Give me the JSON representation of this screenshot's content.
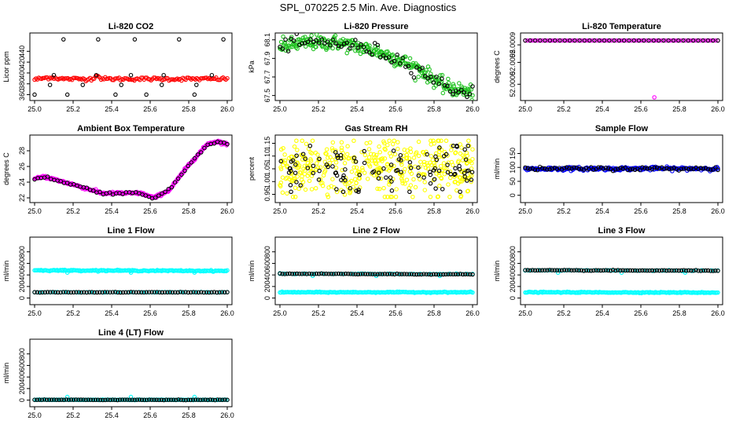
{
  "page": {
    "title": "SPL_070225  2.5 Min. Ave. Diagnostics"
  },
  "colors": {
    "red": "#ff0000",
    "green": "#22c322",
    "magenta": "#ff00ff",
    "yellow": "#ffff00",
    "blue": "#0000ff",
    "cyan": "#00ffff",
    "black": "#000000"
  },
  "chart_data": [
    {
      "id": "co2",
      "type": "scatter",
      "title": "Li-820 CO2",
      "ylabel": "Licor ppm",
      "xlim": [
        25.0,
        26.0
      ],
      "ylim": [
        355,
        468
      ],
      "xticks": [
        "25.0",
        "25.2",
        "25.4",
        "25.6",
        "25.8",
        "26.0"
      ],
      "yticks": [
        360,
        380,
        400,
        420,
        440
      ],
      "series": [
        {
          "name": "co2-main",
          "color": "red",
          "kind": "band",
          "anchors": [
            [
              25.0,
              388
            ],
            [
              25.08,
              392
            ],
            [
              25.15,
              389
            ],
            [
              25.3,
              389
            ],
            [
              25.32,
              396
            ],
            [
              25.35,
              389
            ],
            [
              26.0,
              389
            ]
          ],
          "noise": 1.5,
          "n": 140
        },
        {
          "name": "co2-ref",
          "color": "black",
          "kind": "levels",
          "x": [
            25.0,
            25.08,
            25.1,
            25.15,
            25.17,
            25.25,
            25.32,
            25.33,
            25.42,
            25.45,
            25.5,
            25.52,
            25.58,
            25.66,
            25.67,
            25.75,
            25.83,
            25.84,
            25.92,
            25.98
          ],
          "levels": [
            360,
            378,
            396,
            462
          ]
        }
      ]
    },
    {
      "id": "pressure",
      "type": "scatter",
      "title": "Li-820 Pressure",
      "ylabel": "kPa",
      "xlim": [
        25.0,
        26.0
      ],
      "ylim": [
        67.48,
        68.14
      ],
      "xticks": [
        "25.0",
        "25.2",
        "25.4",
        "25.6",
        "25.8",
        "26.0"
      ],
      "yticks": [
        67.5,
        67.7,
        67.9,
        68.1
      ],
      "series": [
        {
          "name": "pressure-main",
          "color": "green",
          "kind": "band",
          "anchors": [
            [
              25.0,
              68.03
            ],
            [
              25.15,
              68.07
            ],
            [
              25.3,
              68.07
            ],
            [
              25.5,
              67.98
            ],
            [
              25.65,
              67.86
            ],
            [
              25.75,
              67.75
            ],
            [
              25.85,
              67.6
            ],
            [
              25.95,
              67.55
            ],
            [
              26.0,
              67.53
            ]
          ],
          "noise": 0.04,
          "n": 300
        },
        {
          "name": "pressure-ref",
          "color": "black",
          "kind": "band",
          "anchors": [
            [
              25.0,
              68.03
            ],
            [
              25.15,
              68.07
            ],
            [
              25.3,
              68.07
            ],
            [
              25.5,
              67.98
            ],
            [
              25.65,
              67.86
            ],
            [
              25.75,
              67.75
            ],
            [
              25.85,
              67.6
            ],
            [
              25.95,
              67.55
            ],
            [
              26.0,
              67.53
            ]
          ],
          "noise": 0.04,
          "n": 70
        }
      ]
    },
    {
      "id": "temperature",
      "type": "scatter",
      "title": "Li-820 Temperature",
      "ylabel": "degrees C",
      "xlim": [
        25.0,
        26.0
      ],
      "ylim": [
        51.9997,
        52.0011
      ],
      "xticks": [
        "25.0",
        "25.2",
        "25.4",
        "25.6",
        "25.8",
        "26.0"
      ],
      "yticks": [
        "52.0000",
        "52.0005",
        "52.0009"
      ],
      "series": [
        {
          "name": "temperature-main",
          "color": "magenta",
          "kind": "band",
          "anchors": [
            [
              25.0,
              52.001
            ],
            [
              26.0,
              52.001
            ]
          ],
          "noise": 0.0,
          "n": 90
        },
        {
          "name": "temperature-ref",
          "color": "black",
          "kind": "band",
          "anchors": [
            [
              25.0,
              52.001
            ],
            [
              26.0,
              52.001
            ]
          ],
          "noise": 0.0,
          "n": 40
        },
        {
          "name": "temperature-outlier",
          "color": "magenta",
          "kind": "points",
          "x": [
            25.67
          ],
          "y": [
            51.9997
          ]
        }
      ]
    },
    {
      "id": "ambient",
      "type": "scatter",
      "title": "Ambient Box Temperature",
      "ylabel": "degrees C",
      "xlim": [
        25.0,
        26.0
      ],
      "ylim": [
        21.8,
        29.6
      ],
      "xticks": [
        "25.0",
        "25.2",
        "25.4",
        "25.6",
        "25.8",
        "26.0"
      ],
      "yticks": [
        22,
        24,
        26,
        28
      ],
      "series": [
        {
          "name": "ambient-main",
          "color": "magenta",
          "kind": "band",
          "anchors": [
            [
              25.0,
              24.4
            ],
            [
              25.05,
              24.7
            ],
            [
              25.2,
              23.7
            ],
            [
              25.35,
              22.6
            ],
            [
              25.55,
              22.6
            ],
            [
              25.62,
              22.0
            ],
            [
              25.7,
              23.0
            ],
            [
              25.8,
              26.2
            ],
            [
              25.9,
              28.9
            ],
            [
              25.95,
              29.2
            ],
            [
              26.0,
              28.8
            ]
          ],
          "noise": 0.08,
          "n": 300
        },
        {
          "name": "ambient-ref",
          "color": "black",
          "kind": "band",
          "anchors": [
            [
              25.0,
              24.4
            ],
            [
              25.05,
              24.7
            ],
            [
              25.2,
              23.7
            ],
            [
              25.35,
              22.6
            ],
            [
              25.55,
              22.6
            ],
            [
              25.62,
              22.0
            ],
            [
              25.7,
              23.0
            ],
            [
              25.8,
              26.2
            ],
            [
              25.9,
              28.9
            ],
            [
              25.95,
              29.2
            ],
            [
              26.0,
              28.8
            ]
          ],
          "noise": 0.08,
          "n": 60
        }
      ]
    },
    {
      "id": "rh",
      "type": "scatter",
      "title": "Gas Stream RH",
      "ylabel": "percent",
      "xlim": [
        25.0,
        26.0
      ],
      "ylim": [
        0.93,
        1.17
      ],
      "xticks": [
        "25.0",
        "25.2",
        "25.4",
        "25.6",
        "25.8",
        "26.0"
      ],
      "yticks": [
        "0.95",
        "1.00",
        "1.05",
        "1.10",
        "1.15"
      ],
      "series": [
        {
          "name": "rh-main",
          "color": "yellow",
          "kind": "scatter",
          "center": 1.05,
          "spread": 0.06,
          "ymin": 0.94,
          "ymax": 1.16,
          "n": 420
        },
        {
          "name": "rh-ref",
          "color": "black",
          "kind": "scatter",
          "center": 1.05,
          "spread": 0.05,
          "ymin": 0.96,
          "ymax": 1.14,
          "n": 110
        }
      ]
    },
    {
      "id": "sample-flow",
      "type": "scatter",
      "title": "Sample Flow",
      "ylabel": "ml/min",
      "xlim": [
        25.0,
        26.0
      ],
      "ylim": [
        -15,
        205
      ],
      "xticks": [
        "25.0",
        "25.2",
        "25.4",
        "25.6",
        "25.8",
        "26.0"
      ],
      "yticks": [
        0,
        50,
        100,
        150
      ],
      "series": [
        {
          "name": "sample-flow-main",
          "color": "blue",
          "kind": "band",
          "anchors": [
            [
              25.0,
              95
            ],
            [
              26.0,
              96
            ]
          ],
          "noise": 3,
          "n": 220
        },
        {
          "name": "sample-flow-ref",
          "color": "black",
          "kind": "band",
          "anchors": [
            [
              25.0,
              95
            ],
            [
              26.0,
              96
            ]
          ],
          "noise": 3,
          "n": 80
        }
      ]
    },
    {
      "id": "line1",
      "type": "scatter",
      "title": "Line 1 Flow",
      "ylabel": "ml/min",
      "xlim": [
        25.0,
        26.0
      ],
      "ylim": [
        -60,
        1000
      ],
      "xticks": [
        "25.0",
        "25.2",
        "25.4",
        "25.6",
        "25.8",
        "26.0"
      ],
      "yticks": [
        0,
        200,
        400,
        600,
        800
      ],
      "series": [
        {
          "name": "line1-main",
          "color": "cyan",
          "kind": "band",
          "anchors": [
            [
              25.0,
              480
            ],
            [
              26.0,
              470
            ]
          ],
          "noise": 5,
          "n": 180
        },
        {
          "name": "line1-dips",
          "color": "cyan",
          "kind": "points",
          "x": [
            25.17,
            25.5,
            25.83
          ],
          "y": [
            440,
            440,
            440
          ]
        },
        {
          "name": "line1-cyan-low",
          "color": "cyan",
          "kind": "band",
          "anchors": [
            [
              25.0,
              100
            ],
            [
              26.0,
              100
            ]
          ],
          "noise": 2,
          "n": 60
        },
        {
          "name": "line1-ref",
          "color": "black",
          "kind": "band",
          "anchors": [
            [
              25.0,
              100
            ],
            [
              26.0,
              100
            ]
          ],
          "noise": 2,
          "n": 75
        }
      ]
    },
    {
      "id": "line2",
      "type": "scatter",
      "title": "Line 2 Flow",
      "ylabel": "ml/min",
      "xlim": [
        25.0,
        26.0
      ],
      "ylim": [
        -60,
        1000
      ],
      "xticks": [
        "25.0",
        "25.2",
        "25.4",
        "25.6",
        "25.8",
        "26.0"
      ],
      "yticks": [
        0,
        200,
        400,
        600,
        800
      ],
      "series": [
        {
          "name": "line2-cyan-low",
          "color": "cyan",
          "kind": "band",
          "anchors": [
            [
              25.0,
              100
            ],
            [
              26.0,
              100
            ]
          ],
          "noise": 4,
          "n": 180
        },
        {
          "name": "line2-cyan-high",
          "color": "cyan",
          "kind": "band",
          "anchors": [
            [
              25.0,
              420
            ],
            [
              26.0,
              415
            ]
          ],
          "noise": 3,
          "n": 60
        },
        {
          "name": "line2-dips",
          "color": "cyan",
          "kind": "points",
          "x": [
            25.0,
            25.17,
            25.5,
            25.83
          ],
          "y": [
            430,
            385,
            385,
            385
          ]
        },
        {
          "name": "line2-ref",
          "color": "black",
          "kind": "band",
          "anchors": [
            [
              25.0,
              420
            ],
            [
              26.0,
              410
            ]
          ],
          "noise": 3,
          "n": 80
        }
      ]
    },
    {
      "id": "line3",
      "type": "scatter",
      "title": "Line 3 Flow",
      "ylabel": "ml/min",
      "xlim": [
        25.0,
        26.0
      ],
      "ylim": [
        -60,
        1000
      ],
      "xticks": [
        "25.0",
        "25.2",
        "25.4",
        "25.6",
        "25.8",
        "26.0"
      ],
      "yticks": [
        0,
        200,
        400,
        600,
        800
      ],
      "series": [
        {
          "name": "line3-cyan-low",
          "color": "cyan",
          "kind": "band",
          "anchors": [
            [
              25.0,
              100
            ],
            [
              26.0,
              95
            ]
          ],
          "noise": 4,
          "n": 180
        },
        {
          "name": "line3-cyan-high",
          "color": "cyan",
          "kind": "band",
          "anchors": [
            [
              25.0,
              480
            ],
            [
              26.0,
              475
            ]
          ],
          "noise": 3,
          "n": 60
        },
        {
          "name": "line3-dips",
          "color": "cyan",
          "kind": "points",
          "x": [
            25.0,
            25.17,
            25.5,
            25.83
          ],
          "y": [
            480,
            440,
            440,
            440
          ]
        },
        {
          "name": "line3-ref",
          "color": "black",
          "kind": "band",
          "anchors": [
            [
              25.0,
              480
            ],
            [
              26.0,
              475
            ]
          ],
          "noise": 3,
          "n": 80
        }
      ]
    },
    {
      "id": "line4",
      "type": "scatter",
      "title": "Line 4 (LT) Flow",
      "ylabel": "ml/min",
      "xlim": [
        25.0,
        26.0
      ],
      "ylim": [
        -60,
        1000
      ],
      "xticks": [
        "25.0",
        "25.2",
        "25.4",
        "25.6",
        "25.8",
        "26.0"
      ],
      "yticks": [
        0,
        200,
        400,
        600,
        800
      ],
      "series": [
        {
          "name": "line4-cyan",
          "color": "cyan",
          "kind": "band",
          "anchors": [
            [
              25.0,
              5
            ],
            [
              26.0,
              5
            ]
          ],
          "noise": 2,
          "n": 120
        },
        {
          "name": "line4-spikes",
          "color": "cyan",
          "kind": "points",
          "x": [
            25.17,
            25.5,
            25.83
          ],
          "y": [
            55,
            55,
            55
          ]
        },
        {
          "name": "line4-ref",
          "color": "black",
          "kind": "band",
          "anchors": [
            [
              25.0,
              5
            ],
            [
              26.0,
              5
            ]
          ],
          "noise": 2,
          "n": 80
        }
      ]
    }
  ]
}
